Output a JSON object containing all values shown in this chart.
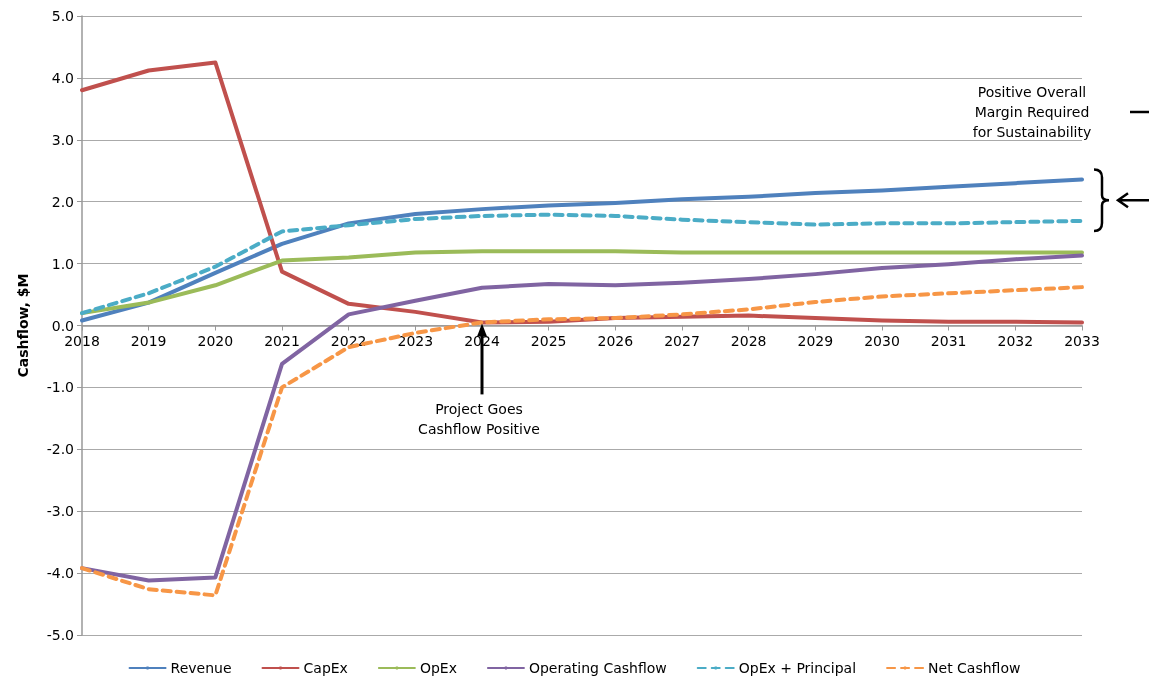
{
  "chart_data": {
    "type": "line",
    "ylabel": "Cashflow, $M",
    "categories": [
      "2018",
      "2019",
      "2020",
      "2021",
      "2022",
      "2023",
      "2024",
      "2025",
      "2026",
      "2027",
      "2028",
      "2029",
      "2030",
      "2031",
      "2032",
      "2033"
    ],
    "ylim": [
      -5,
      5
    ],
    "yticks": [
      {
        "value": -5,
        "label": "-5.0"
      },
      {
        "value": -4,
        "label": "-4.0"
      },
      {
        "value": -3,
        "label": "-3.0"
      },
      {
        "value": -2,
        "label": "-2.0"
      },
      {
        "value": -1,
        "label": "-1.0"
      },
      {
        "value": 0,
        "label": "0.0"
      },
      {
        "value": 1,
        "label": "1.0"
      },
      {
        "value": 2,
        "label": "2.0"
      },
      {
        "value": 3,
        "label": "3.0"
      },
      {
        "value": 4,
        "label": "4.0"
      },
      {
        "value": 5,
        "label": "5.0"
      }
    ],
    "grid": "y",
    "legend": "bottom",
    "marker": "none",
    "series": [
      {
        "name": "Revenue",
        "color": "#4f81bd",
        "line_style": "solid",
        "values": [
          0.08,
          0.37,
          0.85,
          1.32,
          1.65,
          1.8,
          1.88,
          1.94,
          1.98,
          2.04,
          2.08,
          2.14,
          2.18,
          2.24,
          2.3,
          2.36
        ]
      },
      {
        "name": "CapEx",
        "color": "#c0504d",
        "line_style": "solid",
        "values": [
          3.8,
          4.12,
          4.25,
          0.87,
          0.35,
          0.22,
          0.05,
          0.06,
          0.12,
          0.14,
          0.16,
          0.12,
          0.08,
          0.06,
          0.06,
          0.05
        ]
      },
      {
        "name": "OpEx",
        "color": "#9bbb59",
        "line_style": "solid",
        "values": [
          0.2,
          0.37,
          0.65,
          1.05,
          1.1,
          1.18,
          1.2,
          1.2,
          1.2,
          1.18,
          1.18,
          1.18,
          1.18,
          1.18,
          1.18,
          1.18
        ]
      },
      {
        "name": "Operating Cashflow",
        "color": "#8064a2",
        "line_style": "solid",
        "values": [
          -3.92,
          -4.12,
          -4.07,
          -0.62,
          0.18,
          0.4,
          0.61,
          0.67,
          0.65,
          0.69,
          0.75,
          0.83,
          0.93,
          0.99,
          1.07,
          1.13
        ]
      },
      {
        "name": "OpEx + Principal",
        "color": "#4bacc6",
        "line_style": "dashed",
        "values": [
          0.2,
          0.52,
          0.95,
          1.52,
          1.62,
          1.72,
          1.77,
          1.79,
          1.77,
          1.71,
          1.67,
          1.63,
          1.65,
          1.65,
          1.67,
          1.69
        ]
      },
      {
        "name": "Net Cashflow",
        "color": "#f79646",
        "line_style": "dashed",
        "values": [
          -3.92,
          -4.26,
          -4.36,
          -1.0,
          -0.35,
          -0.12,
          0.05,
          0.1,
          0.12,
          0.18,
          0.26,
          0.38,
          0.47,
          0.52,
          0.57,
          0.62
        ]
      }
    ],
    "annotations": [
      "Positive Overall Margin Required for Sustainability",
      "Project Goes Cashflow Positive"
    ]
  }
}
